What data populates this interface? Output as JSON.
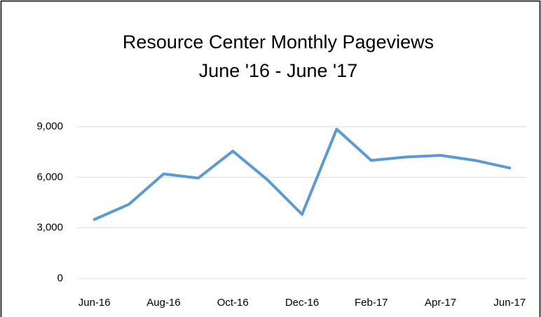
{
  "chart_data": {
    "type": "line",
    "title": "Resource Center Monthly Pageviews",
    "subtitle": "June '16 - June '17",
    "categories": [
      "Jun-16",
      null,
      "Aug-16",
      null,
      "Oct-16",
      null,
      "Dec-16",
      null,
      "Feb-17",
      null,
      "Apr-17",
      null,
      "Jun-17"
    ],
    "series": [
      {
        "color": "#5b9bd5",
        "values": [
          3500,
          4400,
          6200,
          5950,
          7550,
          5850,
          3800,
          8850,
          7000,
          7200,
          7300,
          7000,
          6550
        ]
      }
    ],
    "ylim": [
      0,
      9000
    ],
    "yticks": [
      0,
      {
        "value": 3000,
        "label": "3,000"
      },
      {
        "value": 6000,
        "label": "6,000"
      },
      {
        "value": 9000,
        "label": "9,000"
      }
    ],
    "grid": true
  }
}
